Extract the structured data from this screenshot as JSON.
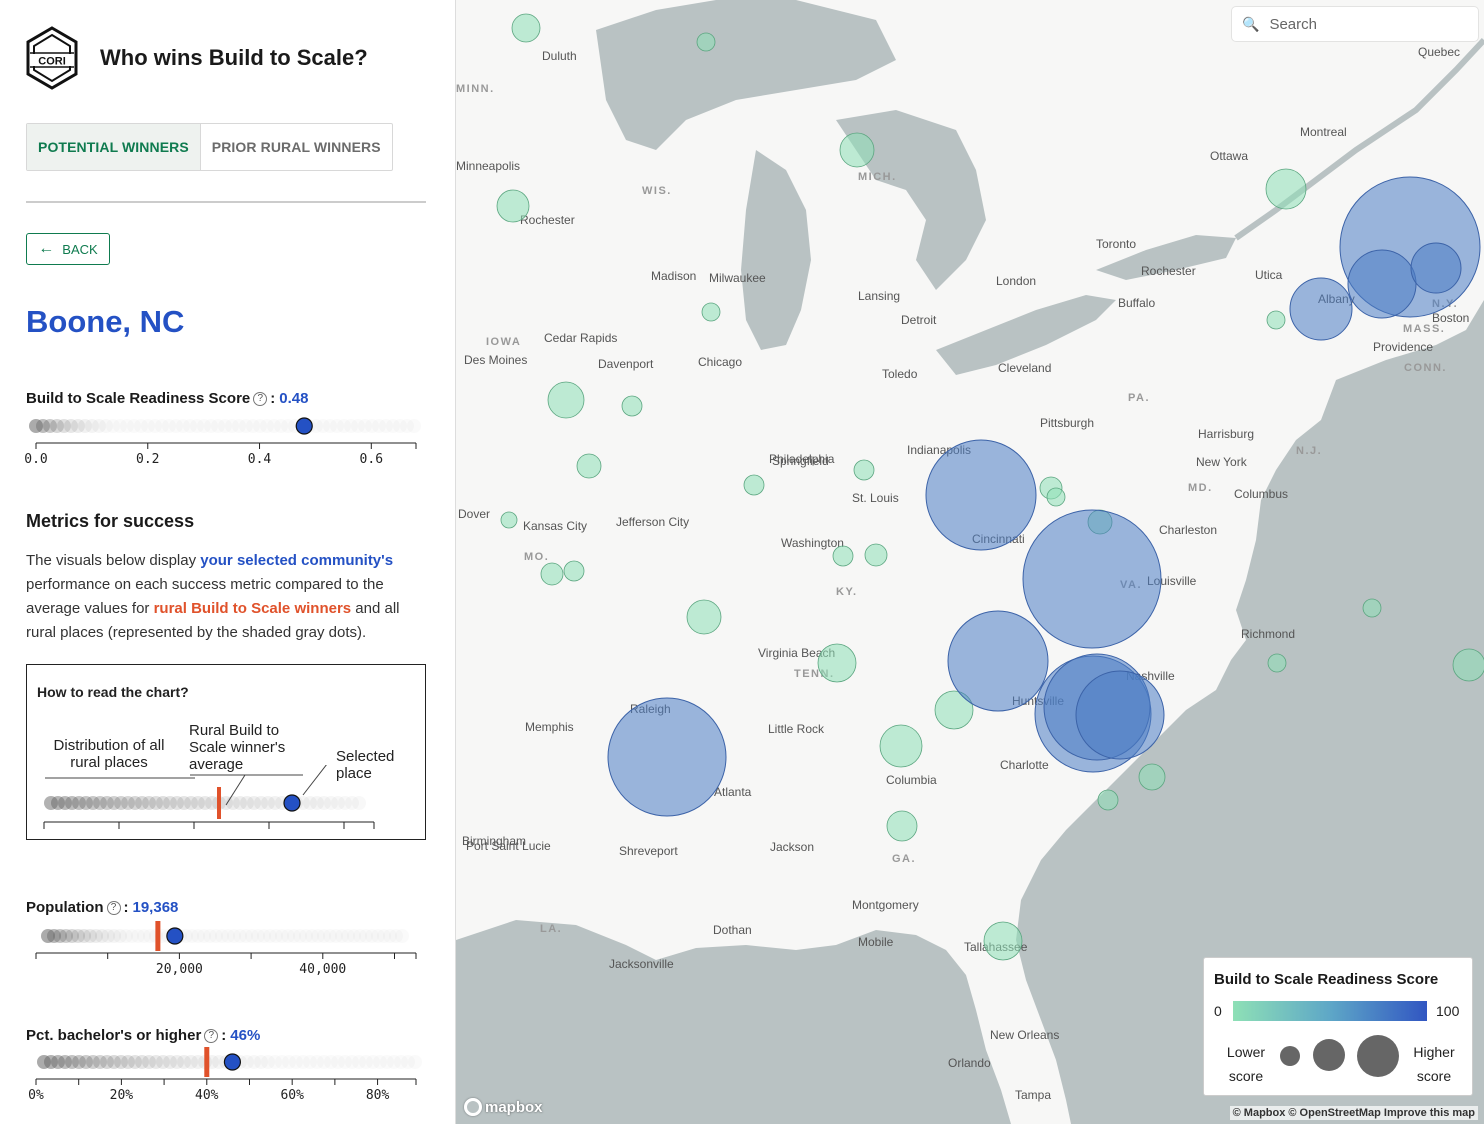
{
  "header": {
    "logo_text": "CORI",
    "title": "Who wins Build to Scale?"
  },
  "tabs": [
    {
      "label": "POTENTIAL WINNERS",
      "active": true
    },
    {
      "label": "PRIOR RURAL WINNERS",
      "active": false
    }
  ],
  "back_label": "BACK",
  "place_name": "Boone, NC",
  "readiness": {
    "label": "Build to Scale Readiness Score",
    "value_text": "0.48",
    "value": 0.48,
    "domain": [
      0,
      0.68
    ],
    "ticks": [
      "0.0",
      "0.2",
      "0.4",
      "0.6"
    ],
    "tick_values": [
      0,
      0.2,
      0.4,
      0.6
    ]
  },
  "metrics_title": "Metrics for success",
  "description": {
    "part1": "The visuals below display ",
    "highlight1": "your selected community's",
    "part2": " performance on each success metric compared to the average values for ",
    "highlight2": "rural Build to Scale winners",
    "part3": " and all rural places (represented by the shaded gray dots)."
  },
  "howto": {
    "title": "How to read the chart?",
    "distribution_label": "Distribution of all rural places",
    "winner_label": "Rural Build to Scale winner's average",
    "selected_label": "Selected place"
  },
  "population": {
    "label": "Population",
    "value_text": "19,368",
    "value": 19368,
    "winner_avg": 17000,
    "domain": [
      0,
      53000
    ],
    "ticks": [
      "20,000",
      "40,000"
    ],
    "tick_values": [
      20000,
      40000
    ]
  },
  "bachelor": {
    "label": "Pct. bachelor's or higher",
    "value_text": "46%",
    "value": 46,
    "winner_avg": 40,
    "domain": [
      0,
      89
    ],
    "ticks": [
      "0%",
      "20%",
      "40%",
      "60%",
      "80%"
    ],
    "tick_values": [
      0,
      20,
      40,
      60,
      80
    ]
  },
  "map": {
    "search_placeholder": "Search",
    "legend": {
      "title": "Build to Scale Readiness Score",
      "min": "0",
      "max": "100",
      "lower": "Lower score",
      "higher": "Higher score"
    },
    "attribution": "© Mapbox © OpenStreetMap  Improve this map",
    "mapbox_logo": "mapbox",
    "cities": [
      "Duluth",
      "Quebec",
      "Montreal",
      "Ottawa",
      "Minneapolis",
      "Rochester",
      "Madison",
      "Milwaukee",
      "Lansing",
      "Detroit",
      "London",
      "Toronto",
      "Rochester",
      "Buffalo",
      "Utica",
      "Albany",
      "Boston",
      "Providence",
      "Cedar Rapids",
      "Des Moines",
      "Davenport",
      "Chicago",
      "Toledo",
      "Cleveland",
      "Pittsburgh",
      "Harrisburg",
      "New York",
      "Philadelphia",
      "Springfield",
      "Indianapolis",
      "Columbus",
      "Dover",
      "Kansas City",
      "Jefferson City",
      "St. Louis",
      "Cincinnati",
      "Charleston",
      "Washington",
      "Louisville",
      "Richmond",
      "Virginia Beach",
      "Nashville",
      "Raleigh",
      "Memphis",
      "Little Rock",
      "Huntsville",
      "Charlotte",
      "Columbia",
      "Atlanta",
      "Birmingham",
      "Shreveport",
      "Jackson",
      "Montgomery",
      "Dothan",
      "Mobile",
      "Tallahassee",
      "Jacksonville",
      "New Orleans",
      "Orlando",
      "Tampa",
      "Port Saint Lucie"
    ],
    "states": [
      "WIS.",
      "MICH.",
      "IOWA",
      "N.Y.",
      "MASS.",
      "CONN.",
      "PA.",
      "N.J.",
      "MD.",
      "VA.",
      "KY.",
      "MO.",
      "TENN.",
      "GA.",
      "LA.",
      "MINN."
    ],
    "bubbles": [
      {
        "score": 18
      },
      {
        "score": 20
      },
      {
        "score": 70
      },
      {
        "score": 80
      },
      {
        "score": 72
      },
      {
        "score": 78
      },
      {
        "score": 85
      },
      {
        "score": 82
      },
      {
        "score": 62
      },
      {
        "score": 15
      }
    ]
  }
}
